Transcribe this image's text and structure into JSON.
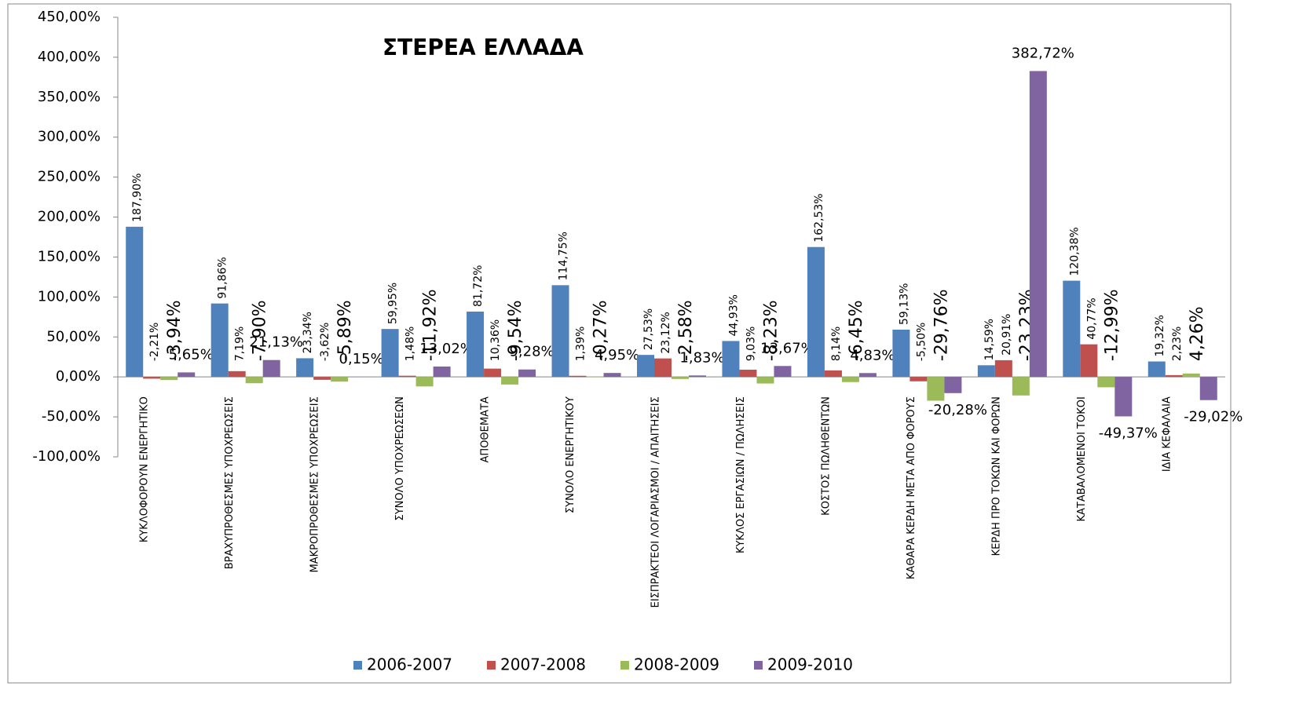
{
  "chart_data": {
    "type": "bar",
    "title": "ΣΤΕΡΕΑ ΕΛΛΑΔΑ",
    "categories": [
      "ΚΥΚΛΟΦΟΡΟΥΝ ΕΝΕΡΓΗΤΙΚΟ",
      "ΒΡΑΧΥΠΡΟΘΕΣΜΕΣ ΥΠΟΧΡΕΩΣΕΙΣ",
      "ΜΑΚΡΟΠΡΟΘΕΣΜΕΣ ΥΠΟΧΡΕΩΣΕΙΣ",
      "ΣΥΝΟΛΟ ΥΠΟΧΡΕΩΣΕΩΝ",
      "ΑΠΟΘΕΜΑΤΑ",
      "ΣΥΝΟΛΟ ΕΝΕΡΓΗΤΙΚΟΥ",
      "ΕΙΣΠΡΑΚΤΕΟΙ ΛΟΓΑΡΙΑΣΜΟΙ / ΑΠΑΙΤΗΣΕΙΣ",
      "ΚΥΚΛΟΣ ΕΡΓΑΣΙΩΝ / ΠΩΛΗΣΕΙΣ",
      "ΚΟΣΤΟΣ ΠΩΛΗΘΕΝΤΩΝ",
      "ΚΑΘΑΡΑ ΚΕΡΔΗ ΜΕΤΑ ΑΠΟ ΦΟΡΟΥΣ",
      "ΚΕΡΔΗ ΠΡΟ ΤΟΚΩΝ ΚΑΙ ΦΟΡΩΝ",
      "ΚΑΤΑΒΑΛΟΜΕΝΟΙ ΤΟΚΟΙ",
      "ΙΔΙΑ ΚΕΦΑΛΑΙΑ"
    ],
    "series": [
      {
        "name": "2006-2007",
        "color": "#4f81bd",
        "values": [
          187.9,
          91.86,
          23.34,
          59.95,
          81.72,
          114.75,
          27.53,
          44.93,
          162.53,
          59.13,
          14.59,
          120.38,
          19.32
        ],
        "value_labels": [
          "187,90%",
          "91,86%",
          "23,34%",
          "59,95%",
          "81,72%",
          "114,75%",
          "27,53%",
          "44,93%",
          "162,53%",
          "59,13%",
          "14,59%",
          "120,38%",
          "19,32%"
        ]
      },
      {
        "name": "2007-2008",
        "color": "#c0504d",
        "values": [
          -2.21,
          7.19,
          -3.62,
          1.48,
          10.36,
          1.39,
          23.12,
          9.03,
          8.14,
          -5.5,
          20.91,
          40.77,
          2.23
        ],
        "value_labels": [
          "-2,21%",
          "7,19%",
          "-3,62%",
          "1,48%",
          "10,36%",
          "1,39%",
          "23,12%",
          "9,03%",
          "8,14%",
          "-5,50%",
          "20,91%",
          "40,77%",
          "2,23%"
        ]
      },
      {
        "name": "2008-2009",
        "color": "#9bbb59",
        "values": [
          -3.94,
          -7.9,
          -5.89,
          -11.92,
          -9.54,
          -0.27,
          -2.58,
          -8.23,
          -6.45,
          -29.76,
          -23.23,
          -12.99,
          4.26
        ],
        "value_labels": [
          "-3,94%",
          "-7,90%",
          "-5,89%",
          "-11,92%",
          "-9,54%",
          "-0,27%",
          "-2,58%",
          "-8,23%",
          "-6,45%",
          "-29,76%",
          "-23,23%",
          "-12,99%",
          "4,26%"
        ]
      },
      {
        "name": "2009-2010",
        "color": "#8064a2",
        "values": [
          5.65,
          21.13,
          0.15,
          13.02,
          9.28,
          4.95,
          1.83,
          13.67,
          4.83,
          -20.28,
          382.72,
          -49.37,
          -29.02
        ],
        "value_labels": [
          "5,65%",
          "21,13%",
          "0,15%",
          "13,02%",
          "9,28%",
          "4,95%",
          "1,83%",
          "13,67%",
          "4,83%",
          "-20,28%",
          "382,72%",
          "-49,37%",
          "-29,02%"
        ]
      }
    ],
    "ylim": [
      -100,
      450
    ],
    "yticks": [
      {
        "value": -100,
        "label": "-100,00%"
      },
      {
        "value": -50,
        "label": "-50,00%"
      },
      {
        "value": 0,
        "label": "0,00%"
      },
      {
        "value": 50,
        "label": "50,00%"
      },
      {
        "value": 100,
        "label": "100,00%"
      },
      {
        "value": 150,
        "label": "150,00%"
      },
      {
        "value": 200,
        "label": "200,00%"
      },
      {
        "value": 250,
        "label": "250,00%"
      },
      {
        "value": 300,
        "label": "300,00%"
      },
      {
        "value": 350,
        "label": "350,00%"
      },
      {
        "value": 400,
        "label": "400,00%"
      },
      {
        "value": 450,
        "label": "450,00%"
      }
    ],
    "legend": "bottom"
  }
}
